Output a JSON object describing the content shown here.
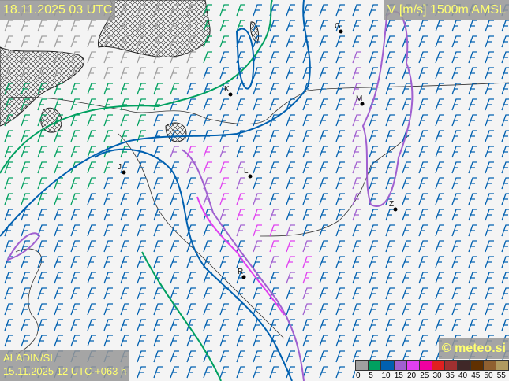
{
  "header": {
    "valid_time": "18.11.2025 03 UTC",
    "parameter": "V [m/s] 1500m AMSL"
  },
  "footer": {
    "model": "ALADIN/SI",
    "run": "15.11.2025 12 UTC +063 h",
    "copyright": "© meteo.si"
  },
  "legend": {
    "ticks": [
      "0",
      "5",
      "10",
      "15",
      "20",
      "25",
      "30",
      "35",
      "40",
      "45",
      "50",
      "55"
    ],
    "colors": [
      "#a0a0a0",
      "#00a060",
      "#0060b0",
      "#a060d0",
      "#e040f0",
      "#f000a0",
      "#e02020",
      "#a03030",
      "#402828",
      "#603000",
      "#906030",
      "#b09a60"
    ]
  },
  "cities": [
    {
      "label": "G"
    },
    {
      "label": "K"
    },
    {
      "label": "M"
    },
    {
      "label": "J"
    },
    {
      "label": "L"
    },
    {
      "label": "Z"
    },
    {
      "label": "R"
    }
  ],
  "icons": {
    "wind": "wind-barb-icon",
    "city": "city-dot-icon"
  }
}
